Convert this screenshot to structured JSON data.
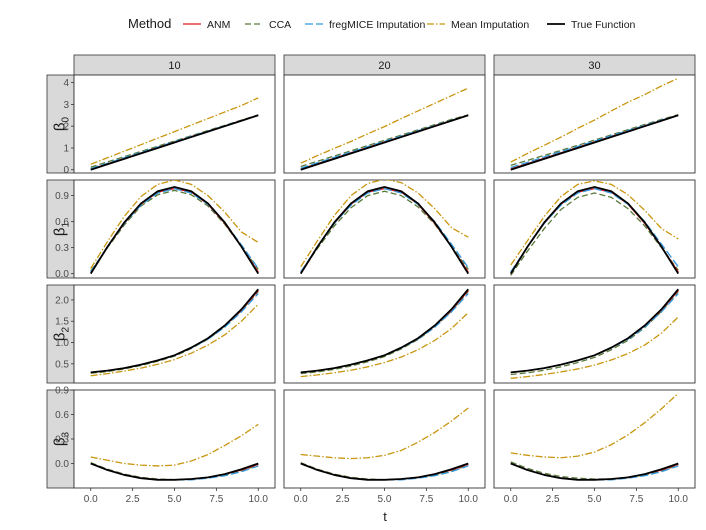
{
  "chart_data": {
    "type": "line",
    "xlabel": "t",
    "legend": {
      "title": "Method",
      "placement": "top",
      "entries": [
        "ANM",
        "CCA",
        "fregMICE Imputation",
        "Mean Imputation",
        "True Function"
      ]
    },
    "styles": {
      "ANM": {
        "color": "#e41a1c",
        "dash": ""
      },
      "CCA": {
        "color": "#5a7a3a",
        "dash": "6,3"
      },
      "fregMICE Imputation": {
        "color": "#3399dd",
        "dash": "8,3"
      },
      "Mean Imputation": {
        "color": "#c8960f",
        "dash": "7,2,1.5,2"
      },
      "True Function": {
        "color": "#000000",
        "dash": ""
      }
    },
    "columns": [
      "10",
      "20",
      "30"
    ],
    "rows": [
      {
        "label_main": "β",
        "label_sub": "0",
        "ylim": [
          -0.15,
          4.35
        ],
        "yticks": [
          0,
          1,
          2,
          3,
          4
        ],
        "ytick_labels": [
          "0",
          "1",
          "2",
          "3",
          "4"
        ]
      },
      {
        "label_main": "β",
        "label_sub": "1",
        "ylim": [
          -0.05,
          1.08
        ],
        "yticks": [
          0,
          0.3,
          0.6,
          0.9
        ],
        "ytick_labels": [
          "0.0",
          "0.3",
          "0.6",
          "0.9"
        ]
      },
      {
        "label_main": "β",
        "label_sub": "2",
        "ylim": [
          0.05,
          2.35
        ],
        "yticks": [
          0.5,
          1,
          1.5,
          2
        ],
        "ytick_labels": [
          "0.5",
          "1.0",
          "1.5",
          "2.0"
        ]
      },
      {
        "label_main": "β",
        "label_sub": "3",
        "ylim": [
          -0.3,
          0.9
        ],
        "yticks": [
          0,
          0.3,
          0.6,
          0.9
        ],
        "ytick_labels": [
          "0.0",
          "0.3",
          "0.6",
          "0.9"
        ]
      }
    ],
    "xlim": [
      -1,
      11
    ],
    "xticks": [
      0,
      2.5,
      5,
      7.5,
      10
    ],
    "xtick_labels": [
      "0.0",
      "2.5",
      "5.0",
      "7.5",
      "10.0"
    ],
    "x": [
      0,
      1,
      2,
      3,
      4,
      5,
      6,
      7,
      8,
      9,
      10
    ],
    "panels": [
      [
        {
          "True Function": [
            0,
            0.25,
            0.5,
            0.75,
            1.0,
            1.25,
            1.5,
            1.75,
            2.0,
            2.25,
            2.5
          ],
          "ANM": [
            0.02,
            0.27,
            0.52,
            0.77,
            1.02,
            1.27,
            1.52,
            1.77,
            2.01,
            2.26,
            2.5
          ],
          "CCA": [
            0.12,
            0.36,
            0.6,
            0.84,
            1.08,
            1.32,
            1.56,
            1.8,
            2.04,
            2.28,
            2.52
          ],
          "fregMICE Imputation": [
            0.05,
            0.3,
            0.55,
            0.8,
            1.04,
            1.29,
            1.53,
            1.78,
            2.02,
            2.26,
            2.49
          ],
          "Mean Imputation": [
            0.25,
            0.55,
            0.85,
            1.15,
            1.45,
            1.75,
            2.05,
            2.35,
            2.65,
            2.95,
            3.3
          ]
        },
        {
          "True Function": [
            0,
            0.25,
            0.5,
            0.75,
            1.0,
            1.25,
            1.5,
            1.75,
            2.0,
            2.25,
            2.5
          ],
          "ANM": [
            0.03,
            0.28,
            0.53,
            0.78,
            1.03,
            1.28,
            1.52,
            1.77,
            2.02,
            2.26,
            2.5
          ],
          "CCA": [
            0.15,
            0.39,
            0.63,
            0.87,
            1.11,
            1.35,
            1.59,
            1.83,
            2.07,
            2.31,
            2.52
          ],
          "fregMICE Imputation": [
            0.07,
            0.32,
            0.57,
            0.81,
            1.06,
            1.3,
            1.55,
            1.79,
            2.03,
            2.27,
            2.49
          ],
          "Mean Imputation": [
            0.3,
            0.65,
            0.98,
            1.3,
            1.65,
            1.98,
            2.35,
            2.7,
            3.05,
            3.4,
            3.75
          ]
        },
        {
          "True Function": [
            0,
            0.25,
            0.5,
            0.75,
            1.0,
            1.25,
            1.5,
            1.75,
            2.0,
            2.25,
            2.5
          ],
          "ANM": [
            0.04,
            0.28,
            0.53,
            0.78,
            1.03,
            1.28,
            1.53,
            1.77,
            2.02,
            2.26,
            2.5
          ],
          "CCA": [
            0.2,
            0.43,
            0.66,
            0.89,
            1.12,
            1.36,
            1.6,
            1.84,
            2.08,
            2.31,
            2.53
          ],
          "fregMICE Imputation": [
            0.1,
            0.34,
            0.59,
            0.83,
            1.07,
            1.31,
            1.56,
            1.8,
            2.04,
            2.28,
            2.5
          ],
          "Mean Imputation": [
            0.35,
            0.75,
            1.12,
            1.5,
            1.9,
            2.28,
            2.7,
            3.1,
            3.45,
            3.85,
            4.2
          ]
        }
      ],
      [
        {
          "True Function": [
            0,
            0.31,
            0.59,
            0.81,
            0.95,
            1.0,
            0.95,
            0.81,
            0.59,
            0.31,
            0
          ],
          "ANM": [
            0.01,
            0.31,
            0.58,
            0.8,
            0.94,
            0.98,
            0.94,
            0.8,
            0.58,
            0.31,
            0.02
          ],
          "CCA": [
            0.03,
            0.3,
            0.56,
            0.78,
            0.91,
            0.96,
            0.91,
            0.78,
            0.57,
            0.31,
            0.05
          ],
          "fregMICE Imputation": [
            0.02,
            0.31,
            0.58,
            0.79,
            0.93,
            0.98,
            0.93,
            0.8,
            0.59,
            0.33,
            0.06
          ],
          "Mean Imputation": [
            0.06,
            0.37,
            0.66,
            0.89,
            1.03,
            1.08,
            1.03,
            0.9,
            0.71,
            0.48,
            0.36
          ]
        },
        {
          "True Function": [
            0,
            0.31,
            0.59,
            0.81,
            0.95,
            1.0,
            0.95,
            0.81,
            0.59,
            0.31,
            0
          ],
          "ANM": [
            0.01,
            0.31,
            0.58,
            0.8,
            0.94,
            0.98,
            0.94,
            0.8,
            0.58,
            0.31,
            0.02
          ],
          "CCA": [
            0.02,
            0.29,
            0.55,
            0.76,
            0.9,
            0.95,
            0.9,
            0.77,
            0.57,
            0.31,
            0.05
          ],
          "fregMICE Imputation": [
            0.02,
            0.31,
            0.58,
            0.79,
            0.93,
            0.98,
            0.93,
            0.8,
            0.6,
            0.34,
            0.07
          ],
          "Mean Imputation": [
            0.08,
            0.38,
            0.67,
            0.9,
            1.04,
            1.09,
            1.05,
            0.93,
            0.75,
            0.53,
            0.42
          ]
        },
        {
          "True Function": [
            0,
            0.31,
            0.59,
            0.81,
            0.95,
            1.0,
            0.95,
            0.81,
            0.59,
            0.31,
            0
          ],
          "ANM": [
            0.01,
            0.31,
            0.58,
            0.8,
            0.94,
            0.98,
            0.94,
            0.8,
            0.58,
            0.31,
            0.02
          ],
          "CCA": [
            -0.02,
            0.26,
            0.52,
            0.74,
            0.88,
            0.93,
            0.88,
            0.75,
            0.55,
            0.3,
            0.04
          ],
          "fregMICE Imputation": [
            0.02,
            0.31,
            0.58,
            0.79,
            0.93,
            0.98,
            0.93,
            0.8,
            0.6,
            0.34,
            0.08
          ],
          "Mean Imputation": [
            0.1,
            0.38,
            0.66,
            0.89,
            1.03,
            1.07,
            1.03,
            0.91,
            0.73,
            0.52,
            0.4
          ]
        }
      ],
      [
        {
          "True Function": [
            0.3,
            0.34,
            0.4,
            0.48,
            0.58,
            0.7,
            0.88,
            1.1,
            1.4,
            1.78,
            2.25
          ],
          "ANM": [
            0.3,
            0.34,
            0.4,
            0.48,
            0.58,
            0.7,
            0.88,
            1.1,
            1.39,
            1.76,
            2.22
          ],
          "CCA": [
            0.28,
            0.32,
            0.38,
            0.46,
            0.56,
            0.68,
            0.86,
            1.08,
            1.37,
            1.75,
            2.2
          ],
          "fregMICE Imputation": [
            0.3,
            0.34,
            0.4,
            0.48,
            0.58,
            0.7,
            0.87,
            1.08,
            1.36,
            1.72,
            2.15
          ],
          "Mean Imputation": [
            0.22,
            0.27,
            0.33,
            0.4,
            0.49,
            0.6,
            0.75,
            0.94,
            1.18,
            1.5,
            1.9
          ]
        },
        {
          "True Function": [
            0.3,
            0.34,
            0.4,
            0.48,
            0.58,
            0.7,
            0.88,
            1.1,
            1.4,
            1.78,
            2.25
          ],
          "ANM": [
            0.3,
            0.34,
            0.4,
            0.48,
            0.58,
            0.7,
            0.88,
            1.1,
            1.39,
            1.76,
            2.22
          ],
          "CCA": [
            0.27,
            0.31,
            0.37,
            0.45,
            0.55,
            0.67,
            0.85,
            1.07,
            1.36,
            1.74,
            2.2
          ],
          "fregMICE Imputation": [
            0.3,
            0.34,
            0.4,
            0.48,
            0.58,
            0.7,
            0.87,
            1.08,
            1.36,
            1.72,
            2.15
          ],
          "Mean Imputation": [
            0.2,
            0.24,
            0.29,
            0.35,
            0.43,
            0.53,
            0.66,
            0.83,
            1.05,
            1.33,
            1.7
          ]
        },
        {
          "True Function": [
            0.3,
            0.34,
            0.4,
            0.48,
            0.58,
            0.7,
            0.88,
            1.1,
            1.4,
            1.78,
            2.25
          ],
          "ANM": [
            0.3,
            0.34,
            0.4,
            0.48,
            0.58,
            0.7,
            0.88,
            1.1,
            1.39,
            1.76,
            2.22
          ],
          "CCA": [
            0.25,
            0.29,
            0.35,
            0.43,
            0.53,
            0.65,
            0.83,
            1.05,
            1.35,
            1.73,
            2.2
          ],
          "fregMICE Imputation": [
            0.3,
            0.34,
            0.4,
            0.48,
            0.58,
            0.7,
            0.87,
            1.08,
            1.36,
            1.72,
            2.15
          ],
          "Mean Imputation": [
            0.16,
            0.2,
            0.25,
            0.31,
            0.38,
            0.47,
            0.59,
            0.74,
            0.94,
            1.22,
            1.6
          ]
        }
      ],
      [
        {
          "True Function": [
            0,
            -0.08,
            -0.14,
            -0.18,
            -0.2,
            -0.2,
            -0.19,
            -0.17,
            -0.13,
            -0.07,
            0
          ],
          "ANM": [
            0,
            -0.08,
            -0.14,
            -0.18,
            -0.2,
            -0.2,
            -0.19,
            -0.17,
            -0.13,
            -0.08,
            -0.01
          ],
          "CCA": [
            0.01,
            -0.07,
            -0.13,
            -0.17,
            -0.19,
            -0.2,
            -0.19,
            -0.17,
            -0.14,
            -0.09,
            -0.02
          ],
          "fregMICE Imputation": [
            0,
            -0.08,
            -0.14,
            -0.18,
            -0.2,
            -0.2,
            -0.2,
            -0.18,
            -0.15,
            -0.1,
            -0.03
          ],
          "Mean Imputation": [
            0.08,
            0.04,
            0.0,
            -0.02,
            -0.03,
            -0.02,
            0.03,
            0.11,
            0.22,
            0.34,
            0.48
          ]
        },
        {
          "True Function": [
            0,
            -0.08,
            -0.14,
            -0.18,
            -0.2,
            -0.2,
            -0.19,
            -0.17,
            -0.13,
            -0.07,
            0
          ],
          "ANM": [
            0,
            -0.08,
            -0.14,
            -0.18,
            -0.2,
            -0.2,
            -0.19,
            -0.17,
            -0.13,
            -0.08,
            -0.01
          ],
          "CCA": [
            0.01,
            -0.07,
            -0.13,
            -0.17,
            -0.19,
            -0.2,
            -0.19,
            -0.17,
            -0.14,
            -0.09,
            -0.02
          ],
          "fregMICE Imputation": [
            0,
            -0.08,
            -0.14,
            -0.18,
            -0.2,
            -0.2,
            -0.2,
            -0.18,
            -0.15,
            -0.1,
            -0.03
          ],
          "Mean Imputation": [
            0.11,
            0.09,
            0.07,
            0.06,
            0.07,
            0.1,
            0.16,
            0.26,
            0.38,
            0.52,
            0.68
          ]
        },
        {
          "True Function": [
            0,
            -0.08,
            -0.14,
            -0.18,
            -0.2,
            -0.2,
            -0.19,
            -0.17,
            -0.13,
            -0.07,
            0
          ],
          "ANM": [
            0,
            -0.08,
            -0.14,
            -0.18,
            -0.2,
            -0.2,
            -0.19,
            -0.17,
            -0.13,
            -0.08,
            -0.01
          ],
          "CCA": [
            0.02,
            -0.06,
            -0.12,
            -0.16,
            -0.18,
            -0.19,
            -0.19,
            -0.17,
            -0.14,
            -0.09,
            -0.02
          ],
          "fregMICE Imputation": [
            0,
            -0.08,
            -0.14,
            -0.18,
            -0.2,
            -0.2,
            -0.2,
            -0.18,
            -0.15,
            -0.1,
            -0.03
          ],
          "Mean Imputation": [
            0.13,
            0.1,
            0.08,
            0.07,
            0.09,
            0.14,
            0.23,
            0.35,
            0.5,
            0.67,
            0.86
          ]
        }
      ]
    ]
  }
}
